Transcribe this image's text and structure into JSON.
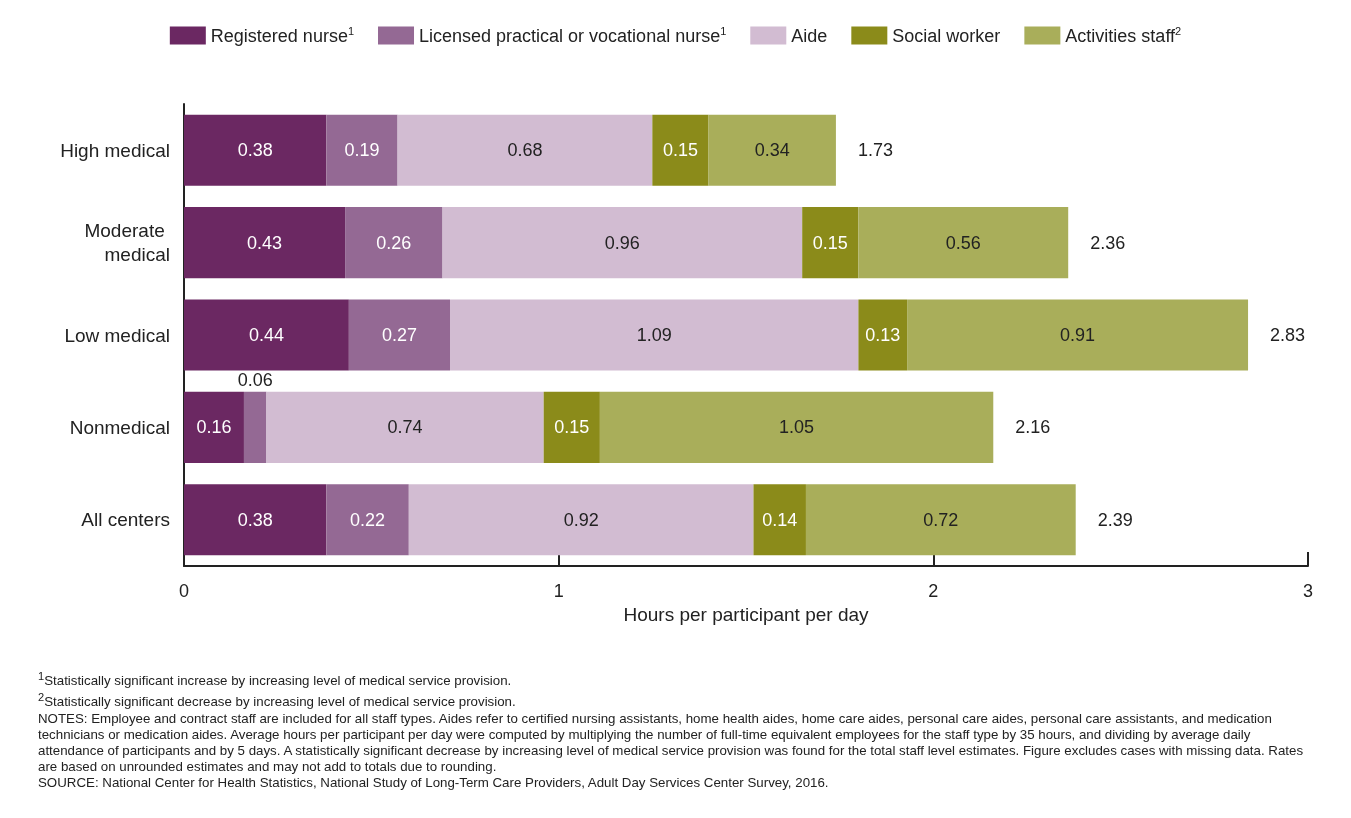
{
  "chart_data": {
    "type": "bar",
    "orientation": "horizontal",
    "stacked": true,
    "categories": [
      "High medical",
      "Moderate medical",
      "Low medical",
      "Nonmedical",
      "All centers"
    ],
    "series": [
      {
        "name": "Registered nurse$^{1}$",
        "color": "#6b2862",
        "values": [
          0.38,
          0.43,
          0.44,
          0.16,
          0.38
        ]
      },
      {
        "name": "Licensed practical or vocational nurse$^{1}$",
        "color": "#946994",
        "values": [
          0.19,
          0.26,
          0.27,
          0.06,
          0.22
        ]
      },
      {
        "name": "Aide",
        "color": "#d2bcd2",
        "values": [
          0.68,
          0.96,
          1.09,
          0.74,
          0.92
        ]
      },
      {
        "name": "Social worker",
        "color": "#8b8b1a",
        "values": [
          0.15,
          0.15,
          0.13,
          0.15,
          0.14
        ]
      },
      {
        "name": "Activities staff$^{2}$",
        "color": "#a9ae5a",
        "values": [
          0.34,
          0.56,
          0.91,
          1.05,
          0.72
        ]
      }
    ],
    "totals": [
      "1.73",
      "2.36",
      "2.83",
      "2.16",
      "2.39"
    ],
    "data_labels": true,
    "xlabel": "Hours per participant per day",
    "xlim": [
      0,
      3
    ],
    "xticks": [
      0,
      1,
      2,
      3
    ],
    "grid": false,
    "legend": "top",
    "annotations": [
      "$^{1}$Statistically significant increase by increasing level of medical service provision.",
      "$^{2}$Statistically significant decrease by increasing level of medical service provision.",
      "NOTES: Employee and contract staff are included for all staff types. Aides refer to certified nursing assistants, home health aides, home care aides, personal care aides, personal care assistants, and medication technicians or medication aides. Average hours per participant per day were computed by multiplying the number of full-time equivalent employees for the staff type by 35 hours, and dividing by average daily attendance of participants and by 5 days. A statistically significant decrease by increasing level of medical service provision was found for the total staff level estimates. Figure excludes cases with missing data. Rates are based on unrounded estimates and may not add to totals due to rounding.",
      "SOURCE: National Center for Health Statistics, National Study of Long-Term Care Providers, Adult Day Services Center Survey, 2016."
    ]
  }
}
